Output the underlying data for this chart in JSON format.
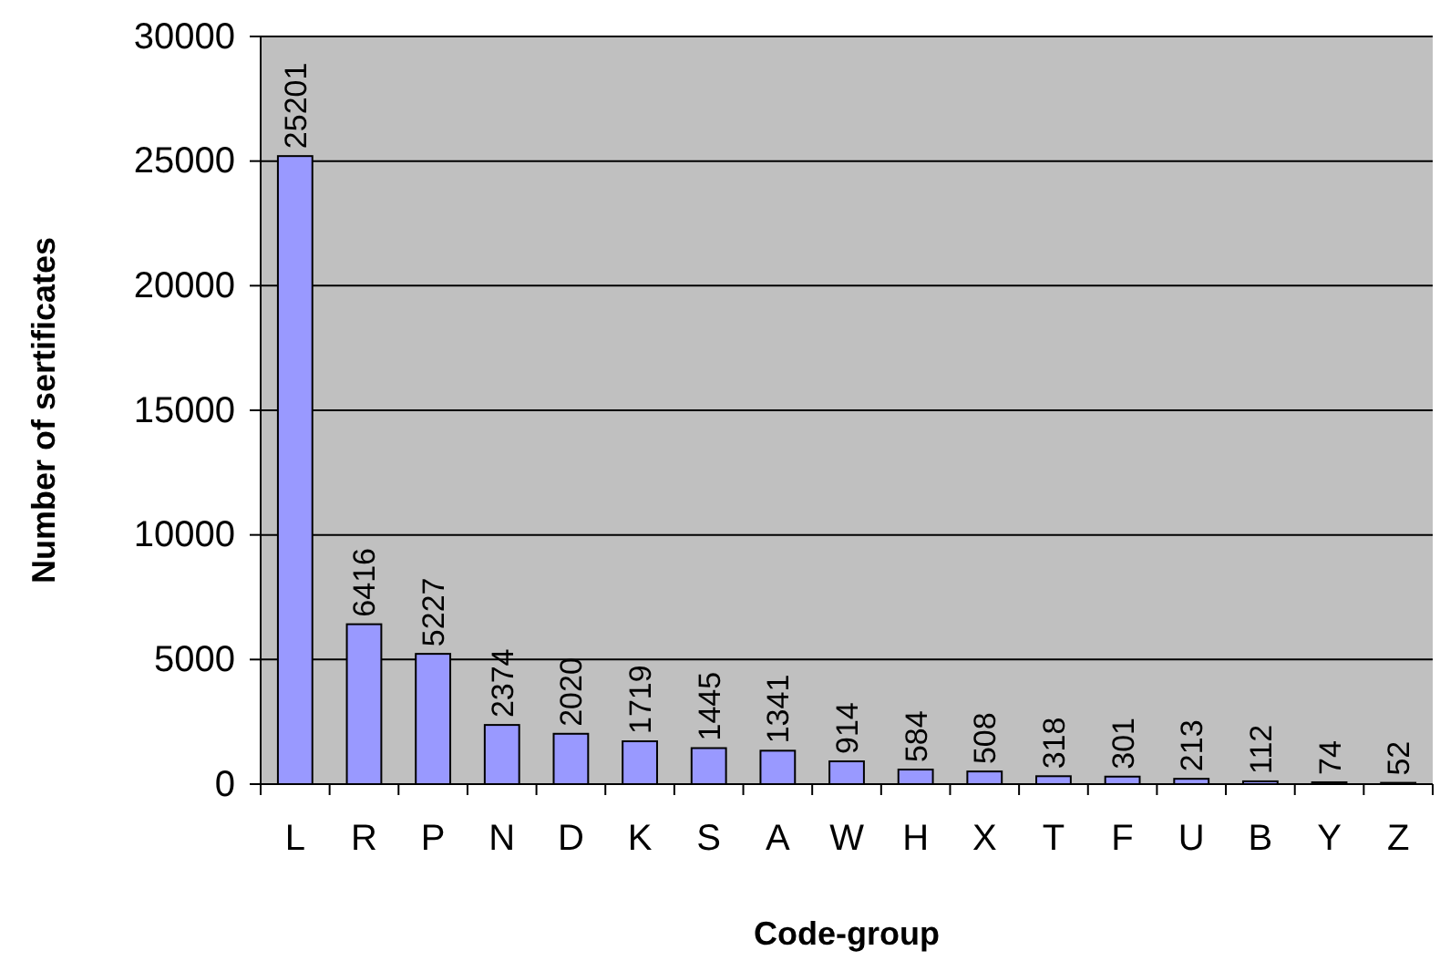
{
  "chart_data": {
    "type": "bar",
    "xlabel": "Code-group",
    "ylabel": "Number of sertificates",
    "categories": [
      "L",
      "R",
      "P",
      "N",
      "D",
      "K",
      "S",
      "A",
      "W",
      "H",
      "X",
      "T",
      "F",
      "U",
      "B",
      "Y",
      "Z"
    ],
    "values": [
      25201,
      6416,
      5227,
      2374,
      2020,
      1719,
      1445,
      1341,
      914,
      584,
      508,
      318,
      301,
      213,
      112,
      74,
      52
    ],
    "color": "#9999ff",
    "ylim": [
      0,
      30000
    ],
    "yticks": [
      0,
      5000,
      10000,
      15000,
      20000,
      25000,
      30000
    ],
    "grid": "y",
    "data_labels": true
  }
}
